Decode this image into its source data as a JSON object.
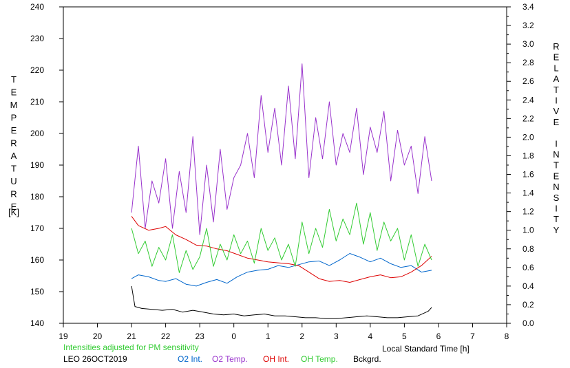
{
  "chart_data": {
    "type": "line",
    "left_axis_label_letters": [
      "T",
      "E",
      "M",
      "P",
      "E",
      "R",
      "A",
      "T",
      "U",
      "R",
      "E"
    ],
    "left_axis_unit": "[K]",
    "right_axis_label_letters": [
      "R",
      "E",
      "L",
      "A",
      "T",
      "I",
      "V",
      "E",
      "",
      "I",
      "N",
      "T",
      "E",
      "N",
      "S",
      "I",
      "T",
      "Y"
    ],
    "xlabel": "Local Standard Time [h]",
    "note": "Intensities adjusted for PM sensitivity",
    "station": "LEO 26OCT2019",
    "x_ticks": [
      "19",
      "20",
      "21",
      "22",
      "23",
      "0",
      "1",
      "2",
      "3",
      "4",
      "5",
      "6",
      "7",
      "8"
    ],
    "y_left_ticks": [
      "140",
      "150",
      "160",
      "170",
      "180",
      "190",
      "200",
      "210",
      "220",
      "230",
      "240"
    ],
    "y_right_ticks": [
      "0.0",
      "0.2",
      "0.4",
      "0.6",
      "0.8",
      "1.0",
      "1.2",
      "1.4",
      "1.6",
      "1.8",
      "2.0",
      "2.2",
      "2.4",
      "2.6",
      "2.8",
      "3.0",
      "3.2",
      "3.4"
    ],
    "xlim": [
      19,
      32
    ],
    "ylim_left": [
      140,
      240
    ],
    "ylim_right": [
      0,
      3.4
    ],
    "grid": false,
    "series": [
      {
        "name": "O2 Int.",
        "axis": "right",
        "color": "#0066cc",
        "x": [
          21.0,
          21.2,
          21.5,
          21.8,
          22.0,
          22.3,
          22.6,
          22.9,
          23.2,
          23.5,
          23.8,
          24.1,
          24.4,
          24.7,
          25.0,
          25.3,
          25.6,
          25.9,
          26.2,
          26.5,
          26.8,
          27.1,
          27.4,
          27.7,
          28.0,
          28.3,
          28.6,
          28.9,
          29.2,
          29.5,
          29.8
        ],
        "y": [
          0.48,
          0.52,
          0.5,
          0.46,
          0.45,
          0.48,
          0.42,
          0.4,
          0.44,
          0.47,
          0.43,
          0.5,
          0.55,
          0.57,
          0.58,
          0.62,
          0.6,
          0.63,
          0.66,
          0.67,
          0.62,
          0.68,
          0.75,
          0.71,
          0.66,
          0.7,
          0.64,
          0.6,
          0.62,
          0.55,
          0.57
        ]
      },
      {
        "name": "O2 Temp.",
        "axis": "left",
        "color": "#9933cc",
        "x": [
          21.0,
          21.2,
          21.4,
          21.6,
          21.8,
          22.0,
          22.2,
          22.4,
          22.6,
          22.8,
          23.0,
          23.2,
          23.4,
          23.6,
          23.8,
          24.0,
          24.2,
          24.4,
          24.6,
          24.8,
          25.0,
          25.2,
          25.4,
          25.6,
          25.8,
          26.0,
          26.2,
          26.4,
          26.6,
          26.8,
          27.0,
          27.2,
          27.4,
          27.6,
          27.8,
          28.0,
          28.2,
          28.4,
          28.6,
          28.8,
          29.0,
          29.2,
          29.4,
          29.6,
          29.8
        ],
        "y": [
          175,
          196,
          170,
          185,
          178,
          192,
          170,
          188,
          175,
          199,
          168,
          190,
          172,
          195,
          176,
          186,
          190,
          200,
          186,
          212,
          194,
          208,
          190,
          215,
          192,
          222,
          186,
          205,
          192,
          210,
          190,
          200,
          194,
          208,
          187,
          202,
          194,
          207,
          185,
          201,
          190,
          196,
          181,
          199,
          185
        ]
      },
      {
        "name": "OH Int.",
        "axis": "right",
        "color": "#dd0000",
        "x": [
          21.0,
          21.2,
          21.5,
          21.8,
          22.0,
          22.3,
          22.6,
          22.9,
          23.2,
          23.5,
          23.8,
          24.1,
          24.4,
          24.7,
          25.0,
          25.3,
          25.6,
          25.9,
          26.2,
          26.5,
          26.8,
          27.1,
          27.4,
          27.7,
          28.0,
          28.3,
          28.6,
          28.9,
          29.2,
          29.5,
          29.8
        ],
        "y": [
          1.15,
          1.05,
          1.0,
          1.02,
          1.04,
          0.95,
          0.9,
          0.84,
          0.83,
          0.8,
          0.78,
          0.74,
          0.7,
          0.68,
          0.66,
          0.65,
          0.64,
          0.62,
          0.55,
          0.48,
          0.45,
          0.46,
          0.44,
          0.47,
          0.5,
          0.52,
          0.49,
          0.5,
          0.55,
          0.62,
          0.72
        ]
      },
      {
        "name": "OH Temp.",
        "axis": "left",
        "color": "#33cc33",
        "x": [
          21.0,
          21.2,
          21.4,
          21.6,
          21.8,
          22.0,
          22.2,
          22.4,
          22.6,
          22.8,
          23.0,
          23.2,
          23.4,
          23.6,
          23.8,
          24.0,
          24.2,
          24.4,
          24.6,
          24.8,
          25.0,
          25.2,
          25.4,
          25.6,
          25.8,
          26.0,
          26.2,
          26.4,
          26.6,
          26.8,
          27.0,
          27.2,
          27.4,
          27.6,
          27.8,
          28.0,
          28.2,
          28.4,
          28.6,
          28.8,
          29.0,
          29.2,
          29.4,
          29.6,
          29.8
        ],
        "y": [
          170,
          162,
          166,
          158,
          164,
          160,
          168,
          156,
          163,
          157,
          161,
          170,
          158,
          165,
          160,
          168,
          162,
          166,
          159,
          170,
          163,
          167,
          160,
          165,
          158,
          172,
          162,
          170,
          164,
          176,
          166,
          173,
          168,
          178,
          165,
          175,
          163,
          172,
          166,
          170,
          160,
          168,
          158,
          165,
          160
        ]
      },
      {
        "name": "Bckgrd.",
        "axis": "right",
        "color": "#000000",
        "x": [
          21.0,
          21.1,
          21.3,
          21.6,
          21.9,
          22.2,
          22.5,
          22.8,
          23.1,
          23.4,
          23.7,
          24.0,
          24.3,
          24.6,
          24.9,
          25.2,
          25.5,
          25.8,
          26.1,
          26.4,
          26.7,
          27.0,
          27.3,
          27.6,
          27.9,
          28.2,
          28.5,
          28.8,
          29.1,
          29.4,
          29.7,
          29.8
        ],
        "y": [
          0.4,
          0.18,
          0.16,
          0.15,
          0.14,
          0.15,
          0.12,
          0.14,
          0.12,
          0.1,
          0.09,
          0.1,
          0.08,
          0.09,
          0.1,
          0.08,
          0.08,
          0.07,
          0.06,
          0.06,
          0.05,
          0.05,
          0.06,
          0.07,
          0.08,
          0.07,
          0.06,
          0.06,
          0.07,
          0.08,
          0.13,
          0.17
        ]
      }
    ]
  }
}
